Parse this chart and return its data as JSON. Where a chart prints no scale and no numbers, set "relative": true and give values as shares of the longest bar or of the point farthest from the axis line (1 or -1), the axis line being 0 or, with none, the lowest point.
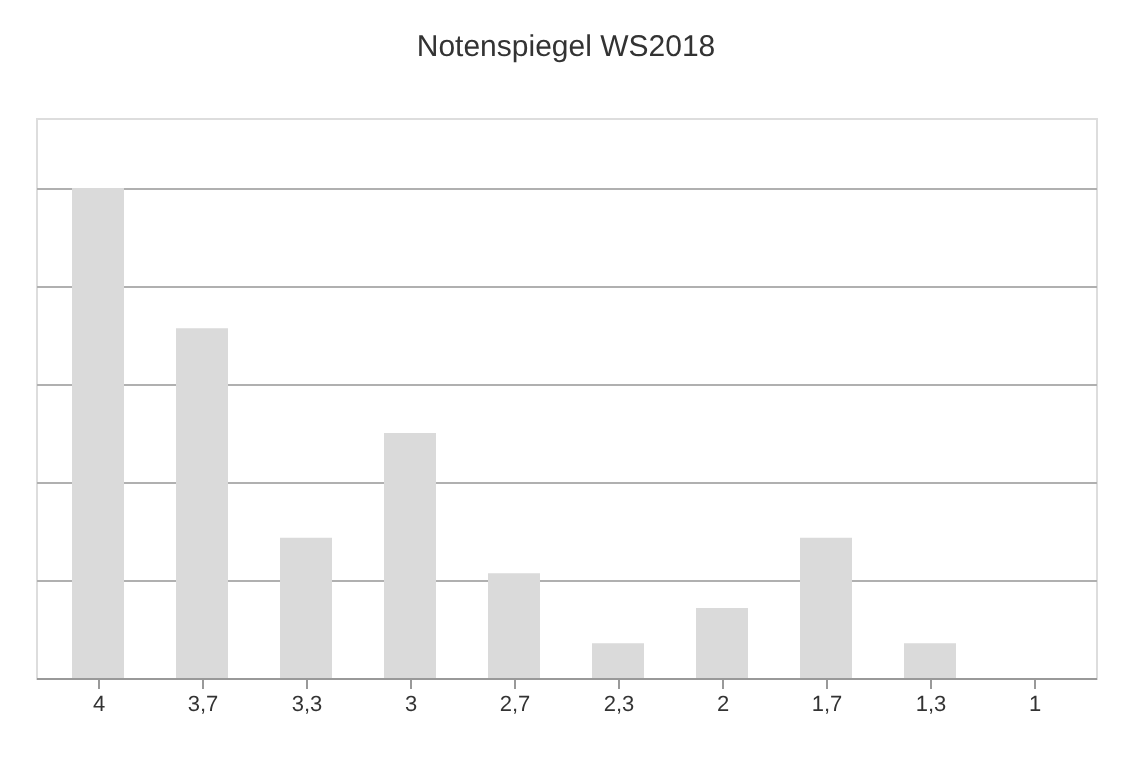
{
  "chart_data": {
    "type": "bar",
    "title": "Notenspiegel WS2018",
    "categories": [
      "4",
      "3,7",
      "3,3",
      "3",
      "2,7",
      "2,3",
      "2",
      "1,7",
      "1,3",
      "1"
    ],
    "values": [
      1,
      0.714,
      0.286,
      0.5,
      0.214,
      0.071,
      0.143,
      0.286,
      0.071,
      0
    ],
    "color": "#dadada",
    "relative": true,
    "grid": "y"
  }
}
